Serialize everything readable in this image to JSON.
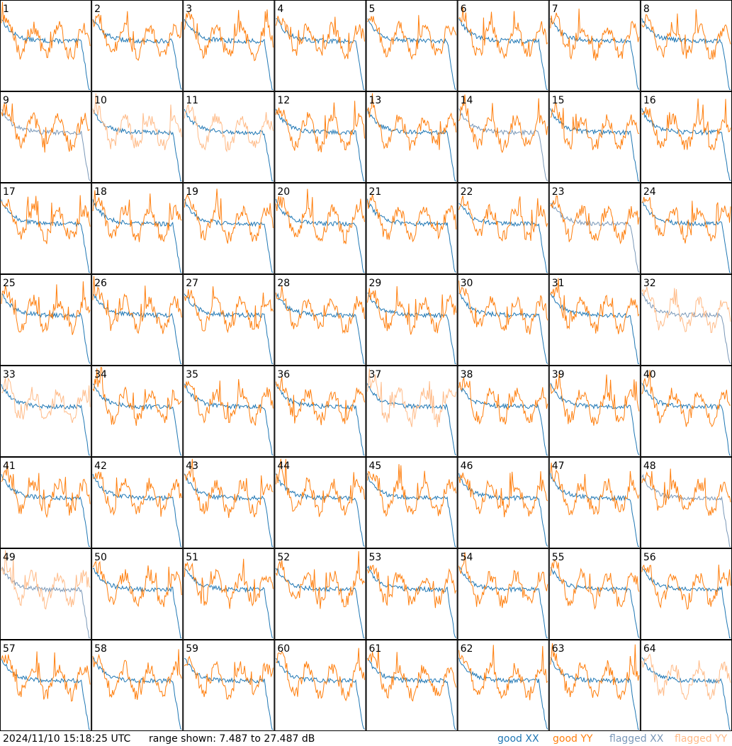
{
  "footer": {
    "timestamp": "2024/11/10 15:18:25 UTC",
    "range": "range shown: 7.487 to 27.487 dB"
  },
  "legend": [
    {
      "label": "good XX",
      "color": "#1f77b4"
    },
    {
      "label": "good YY",
      "color": "#ff7f0e"
    },
    {
      "label": "flagged XX",
      "color": "#7a98b8"
    },
    {
      "label": "flagged YY",
      "color": "#ffbb88"
    }
  ],
  "chart_data": {
    "type": "line",
    "layout": "8x8 grid of antenna spectra",
    "ylim_db": [
      7.487,
      27.487
    ],
    "antennas": [
      {
        "label": "1",
        "xx": "good",
        "yy": "good"
      },
      {
        "label": "2",
        "xx": "good",
        "yy": "good"
      },
      {
        "label": "3",
        "xx": "good",
        "yy": "good"
      },
      {
        "label": "4",
        "xx": "good",
        "yy": "good"
      },
      {
        "label": "5",
        "xx": "good",
        "yy": "good"
      },
      {
        "label": "6",
        "xx": "good",
        "yy": "good"
      },
      {
        "label": "7",
        "xx": "good",
        "yy": "good"
      },
      {
        "label": "8",
        "xx": "good",
        "yy": "good"
      },
      {
        "label": "9",
        "xx": "flagged",
        "yy": "good"
      },
      {
        "label": "10",
        "xx": "good",
        "yy": "flagged"
      },
      {
        "label": "11",
        "xx": "good",
        "yy": "flagged"
      },
      {
        "label": "12",
        "xx": "good",
        "yy": "good"
      },
      {
        "label": "13",
        "xx": "good",
        "yy": "good"
      },
      {
        "label": "14",
        "xx": "flagged",
        "yy": "good"
      },
      {
        "label": "15",
        "xx": "good",
        "yy": "good"
      },
      {
        "label": "16",
        "xx": "good",
        "yy": "good"
      },
      {
        "label": "17",
        "xx": "good",
        "yy": "good"
      },
      {
        "label": "18",
        "xx": "good",
        "yy": "good"
      },
      {
        "label": "19",
        "xx": "good",
        "yy": "good"
      },
      {
        "label": "20",
        "xx": "good",
        "yy": "good"
      },
      {
        "label": "21",
        "xx": "good",
        "yy": "good"
      },
      {
        "label": "22",
        "xx": "good",
        "yy": "good"
      },
      {
        "label": "23",
        "xx": "flagged",
        "yy": "good"
      },
      {
        "label": "24",
        "xx": "good",
        "yy": "good"
      },
      {
        "label": "25",
        "xx": "good",
        "yy": "good"
      },
      {
        "label": "26",
        "xx": "good",
        "yy": "good"
      },
      {
        "label": "27",
        "xx": "good",
        "yy": "good"
      },
      {
        "label": "28",
        "xx": "good",
        "yy": "good"
      },
      {
        "label": "29",
        "xx": "good",
        "yy": "good"
      },
      {
        "label": "30",
        "xx": "good",
        "yy": "good"
      },
      {
        "label": "31",
        "xx": "good",
        "yy": "good"
      },
      {
        "label": "32",
        "xx": "flagged",
        "yy": "flagged"
      },
      {
        "label": "33",
        "xx": "good",
        "yy": "flagged"
      },
      {
        "label": "34",
        "xx": "good",
        "yy": "good"
      },
      {
        "label": "35",
        "xx": "good",
        "yy": "good"
      },
      {
        "label": "36",
        "xx": "good",
        "yy": "good"
      },
      {
        "label": "37",
        "xx": "good",
        "yy": "flagged"
      },
      {
        "label": "38",
        "xx": "good",
        "yy": "good"
      },
      {
        "label": "39",
        "xx": "good",
        "yy": "good"
      },
      {
        "label": "40",
        "xx": "good",
        "yy": "good"
      },
      {
        "label": "41",
        "xx": "good",
        "yy": "good"
      },
      {
        "label": "42",
        "xx": "good",
        "yy": "good"
      },
      {
        "label": "43",
        "xx": "good",
        "yy": "good"
      },
      {
        "label": "44",
        "xx": "good",
        "yy": "good"
      },
      {
        "label": "45",
        "xx": "good",
        "yy": "good"
      },
      {
        "label": "46",
        "xx": "good",
        "yy": "good"
      },
      {
        "label": "47",
        "xx": "good",
        "yy": "good"
      },
      {
        "label": "48",
        "xx": "flagged",
        "yy": "good"
      },
      {
        "label": "49",
        "xx": "flagged",
        "yy": "flagged"
      },
      {
        "label": "50",
        "xx": "good",
        "yy": "good"
      },
      {
        "label": "51",
        "xx": "good",
        "yy": "good"
      },
      {
        "label": "52",
        "xx": "good",
        "yy": "good"
      },
      {
        "label": "53",
        "xx": "good",
        "yy": "good"
      },
      {
        "label": "54",
        "xx": "good",
        "yy": "good"
      },
      {
        "label": "55",
        "xx": "good",
        "yy": "good"
      },
      {
        "label": "56",
        "xx": "good",
        "yy": "good"
      },
      {
        "label": "57",
        "xx": "good",
        "yy": "good"
      },
      {
        "label": "58",
        "xx": "good",
        "yy": "good"
      },
      {
        "label": "59",
        "xx": "good",
        "yy": "good"
      },
      {
        "label": "60",
        "xx": "good",
        "yy": "good"
      },
      {
        "label": "61",
        "xx": "good",
        "yy": "good"
      },
      {
        "label": "62",
        "xx": "good",
        "yy": "good"
      },
      {
        "label": "63",
        "xx": "good",
        "yy": "good"
      },
      {
        "label": "64",
        "xx": "good",
        "yy": "flagged"
      }
    ]
  }
}
